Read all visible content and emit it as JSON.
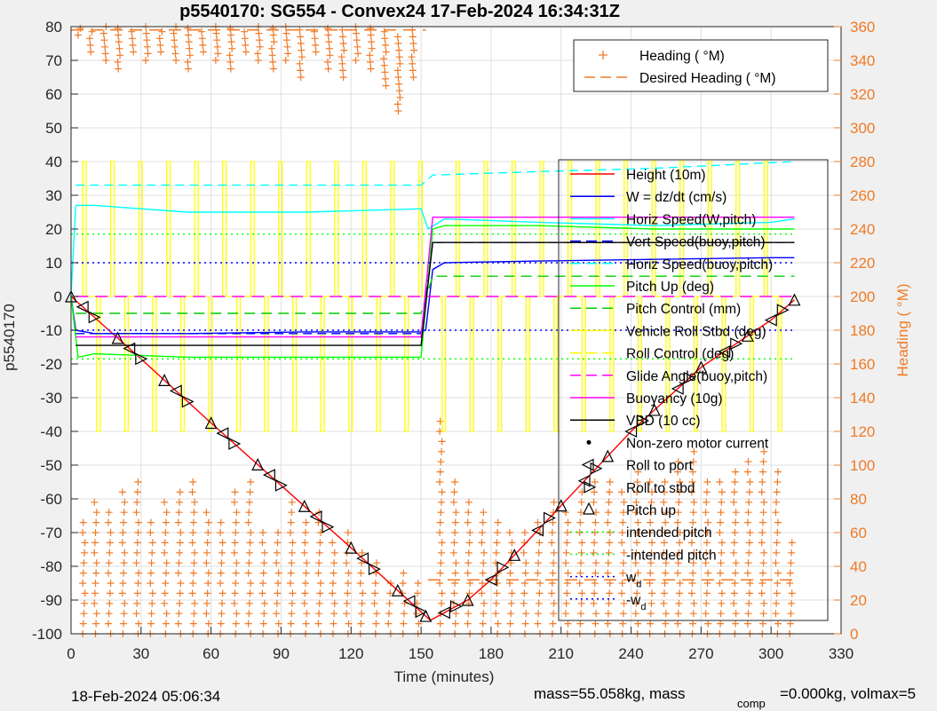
{
  "chart_data": {
    "type": "line",
    "title": "p5540170: SG554 - Convex24 17-Feb-2024 16:34:31Z",
    "xlabel": "Time (minutes)",
    "ylabel": "p5540170",
    "y2label": "Heading (  °M)",
    "xlim": [
      0,
      330
    ],
    "ylim": [
      -100,
      80
    ],
    "y2lim": [
      0,
      360
    ],
    "xticks": [
      0,
      30,
      60,
      90,
      120,
      150,
      180,
      210,
      240,
      270,
      300,
      330
    ],
    "yticks": [
      -100,
      -90,
      -80,
      -70,
      -60,
      -50,
      -40,
      -30,
      -20,
      -10,
      0,
      10,
      20,
      30,
      40,
      50,
      60,
      70,
      80
    ],
    "y2ticks": [
      0,
      20,
      40,
      60,
      80,
      100,
      120,
      140,
      160,
      180,
      200,
      220,
      240,
      260,
      280,
      300,
      320,
      340,
      360
    ],
    "grid": true,
    "footer_left": "18-Feb-2024 05:06:34",
    "footer_right": "mass=55.058kg, mass",
    "footer_sub": "comp",
    "footer_right2": "=0.000kg, volmax=5",
    "legend_heading": [
      {
        "name": "Heading (  °M)",
        "color": "#f07a26",
        "style": "plus"
      },
      {
        "name": "Desired Heading (    °M)",
        "color": "#f07a26",
        "style": "dash"
      }
    ],
    "legend_main": [
      {
        "name": "Height (10m)",
        "color": "#ff0000",
        "style": "solid"
      },
      {
        "name": "W = dz/dt (cm/s)",
        "color": "#0000ff",
        "style": "solid"
      },
      {
        "name": "Horiz Speed(W,pitch)",
        "color": "#00ffff",
        "style": "solid"
      },
      {
        "name": "Vert Speed(buoy,pitch)",
        "color": "#0000ff",
        "style": "dash"
      },
      {
        "name": "Horiz Speed(buoy,pitch)",
        "color": "#00ffff",
        "style": "dash"
      },
      {
        "name": "Pitch Up (deg)",
        "color": "#00ff00",
        "style": "solid"
      },
      {
        "name": "Pitch Control (mm)",
        "color": "#00cc00",
        "style": "dash"
      },
      {
        "name": "Vehicle Roll Stbd (deg)",
        "color": "#ffff00",
        "style": "solid"
      },
      {
        "name": "Roll Control (deg)",
        "color": "#ffff00",
        "style": "dash"
      },
      {
        "name": "Glide Angle(buoy,pitch)",
        "color": "#ff00ff",
        "style": "dash"
      },
      {
        "name": "Buoyancy (10g)",
        "color": "#ff00ff",
        "style": "solid"
      },
      {
        "name": "VBD (10 cc)",
        "color": "#000000",
        "style": "solid"
      },
      {
        "name": "Non-zero motor current",
        "color": "#000000",
        "style": "dot"
      },
      {
        "name": "Roll to port",
        "color": "#000000",
        "style": "ltri"
      },
      {
        "name": "Roll to stbd",
        "color": "#000000",
        "style": "rtri"
      },
      {
        "name": "Pitch up",
        "color": "#000000",
        "style": "utri"
      },
      {
        "name": "intended pitch",
        "color": "#00ff00",
        "style": "dot-line"
      },
      {
        "name": "-intended pitch",
        "color": "#00ff00",
        "style": "dot-line"
      },
      {
        "name": "w",
        "sub": "d",
        "color": "#0000ff",
        "style": "dot-line"
      },
      {
        "name": "-w",
        "sub": "d",
        "color": "#0000ff",
        "style": "dot-line"
      }
    ],
    "series": [
      {
        "name": "Height (10m)",
        "color": "#ff0000",
        "x": [
          0,
          30,
          60,
          90,
          120,
          150,
          154,
          170,
          180,
          210,
          240,
          270,
          300,
          310
        ],
        "y": [
          0,
          -18.5,
          -37.5,
          -56,
          -74.5,
          -93.5,
          -96,
          -90,
          -84,
          -62,
          -40,
          -21,
          -7,
          -1
        ]
      },
      {
        "name": "W = dz/dt (cm/s)",
        "color": "#0000ff",
        "x": [
          0,
          2,
          10,
          50,
          100,
          150,
          152,
          155,
          160,
          200,
          250,
          300,
          310
        ],
        "y": [
          0,
          -10,
          -11,
          -11,
          -10.5,
          -10.5,
          -10,
          8,
          10,
          10.5,
          11,
          11.5,
          11.5
        ]
      },
      {
        "name": "Horiz Speed(W,pitch)",
        "color": "#00ffff",
        "x": [
          0,
          2,
          10,
          50,
          100,
          150,
          153,
          160,
          200,
          250,
          300,
          310
        ],
        "y": [
          0,
          27,
          27,
          25,
          25,
          26,
          20,
          23,
          22,
          21,
          22,
          23
        ]
      },
      {
        "name": "Vert Speed(buoy,pitch)",
        "color": "#0000ff",
        "x": [
          2,
          150,
          155,
          310
        ],
        "y": [
          -11,
          -11,
          16,
          16
        ]
      },
      {
        "name": "Horiz Speed(buoy,pitch)",
        "color": "#00ffff",
        "x": [
          2,
          150,
          155,
          200,
          250,
          310
        ],
        "y": [
          33,
          33,
          36,
          37,
          38,
          40
        ]
      },
      {
        "name": "Pitch Up (deg)",
        "color": "#00ff00",
        "x": [
          0,
          3,
          10,
          50,
          100,
          150,
          155,
          160,
          200,
          250,
          310
        ],
        "y": [
          0,
          -18,
          -17,
          -18,
          -18,
          -18,
          20,
          21,
          21,
          20,
          20
        ]
      },
      {
        "name": "Pitch Control (mm)",
        "color": "#00cc00",
        "x": [
          2,
          150,
          155,
          310
        ],
        "y": [
          -5,
          -5,
          6,
          6
        ]
      },
      {
        "name": "Glide Angle(buoy,pitch)",
        "color": "#ff00ff",
        "x": [
          2,
          150,
          155,
          310
        ],
        "y": [
          0,
          0,
          0,
          0
        ]
      },
      {
        "name": "Buoyancy (10g)",
        "color": "#ff00ff",
        "x": [
          2,
          150,
          155,
          310
        ],
        "y": [
          -12,
          -12,
          23.5,
          23.5
        ]
      },
      {
        "name": "VBD (10 cc)",
        "color": "#000000",
        "x": [
          2,
          150,
          155,
          310
        ],
        "y": [
          -14.5,
          -14.5,
          16,
          16
        ]
      },
      {
        "name": "intended pitch",
        "color": "#00ff00",
        "x": [
          0,
          310
        ],
        "y": [
          18.5,
          18.5
        ]
      },
      {
        "name": "-intended pitch",
        "color": "#00ff00",
        "x": [
          0,
          310
        ],
        "y": [
          -18.5,
          -18.5
        ]
      },
      {
        "name": "w_d",
        "color": "#0000ff",
        "x": [
          0,
          310
        ],
        "y": [
          10,
          10
        ]
      },
      {
        "name": "-w_d",
        "color": "#0000ff",
        "x": [
          0,
          310
        ],
        "y": [
          -10,
          -10
        ]
      }
    ],
    "roll_control": {
      "name": "Roll Control (deg)",
      "color": "#ffff00",
      "baseline": 0,
      "x": [
        5,
        11,
        17,
        23,
        29,
        35,
        41,
        47,
        53,
        59,
        65,
        71,
        77,
        83,
        89,
        95,
        101,
        107,
        113,
        119,
        125,
        131,
        137,
        143,
        149,
        159,
        165,
        171,
        177,
        183,
        189,
        195,
        201,
        207,
        213,
        219,
        225,
        231,
        237,
        243,
        249,
        255,
        261,
        267,
        273,
        279,
        285,
        291,
        297,
        303
      ],
      "y": [
        40,
        -40,
        40,
        -40,
        40,
        -40,
        40,
        -40,
        40,
        -40,
        40,
        -40,
        40,
        -40,
        40,
        -40,
        40,
        -40,
        40,
        -40,
        40,
        -40,
        40,
        -40,
        40,
        -40,
        40,
        -40,
        40,
        -40,
        40,
        -40,
        40,
        -40,
        40,
        -40,
        40,
        -40,
        40,
        -40,
        40,
        -40,
        40,
        -40,
        40,
        -40,
        40,
        -40,
        40,
        -40
      ]
    },
    "heading_columns": {
      "name": "Heading (  °M)",
      "color": "#f07a26",
      "dive": {
        "x": [
          3,
          8,
          14,
          20,
          26,
          32,
          38,
          44,
          50,
          56,
          62,
          68,
          74,
          80,
          86,
          92,
          98,
          104,
          110,
          116,
          122,
          128,
          134,
          140,
          146
        ],
        "low": [
          355,
          345,
          340,
          335,
          345,
          340,
          345,
          340,
          335,
          345,
          340,
          335,
          345,
          340,
          335,
          340,
          330,
          345,
          335,
          330,
          340,
          335,
          325,
          310,
          330
        ],
        "high": [
          360,
          360,
          360,
          360,
          360,
          360,
          360,
          360,
          360,
          360,
          360,
          360,
          360,
          360,
          360,
          360,
          360,
          360,
          360,
          360,
          360,
          360,
          360,
          355,
          360
        ]
      },
      "dive_low": {
        "x": [
          5,
          10,
          16,
          22,
          28,
          34,
          40,
          46,
          52,
          58,
          64,
          70,
          76,
          82,
          88,
          94,
          100,
          106,
          112,
          118,
          124,
          130,
          136,
          142,
          148
        ],
        "low": [
          0,
          0,
          0,
          0,
          0,
          0,
          0,
          0,
          0,
          0,
          0,
          0,
          0,
          0,
          0,
          0,
          0,
          0,
          0,
          0,
          0,
          0,
          0,
          0,
          0
        ],
        "high": [
          70,
          80,
          75,
          85,
          90,
          70,
          80,
          85,
          90,
          75,
          70,
          85,
          90,
          65,
          60,
          80,
          70,
          75,
          55,
          60,
          50,
          45,
          35,
          40,
          30
        ]
      },
      "climb": {
        "x": [
          158,
          164,
          170,
          176,
          182,
          188,
          194,
          200,
          206,
          212,
          218,
          224,
          230,
          236,
          242,
          248,
          254,
          260,
          266,
          272,
          278,
          284,
          290,
          296,
          302,
          308
        ],
        "low": [
          0,
          0,
          0,
          0,
          0,
          0,
          0,
          0,
          0,
          0,
          0,
          0,
          0,
          0,
          0,
          0,
          0,
          0,
          0,
          0,
          0,
          0,
          0,
          0,
          0,
          0
        ],
        "high": [
          130,
          90,
          80,
          75,
          70,
          60,
          65,
          70,
          80,
          75,
          85,
          95,
          90,
          85,
          100,
          95,
          90,
          105,
          110,
          95,
          90,
          100,
          105,
          110,
          100,
          55
        ]
      }
    },
    "desired_heading": {
      "name": "Desired Heading (    °M)",
      "color": "#f07a26",
      "segments": [
        {
          "x": [
            0,
            152
          ],
          "y": [
            358,
            358
          ]
        },
        {
          "x": [
            153,
            310
          ],
          "y": [
            32,
            32
          ]
        }
      ]
    },
    "markers": {
      "pitch_up_x": [
        0,
        20,
        40,
        60,
        80,
        100,
        120,
        140,
        152,
        170,
        190,
        210,
        230,
        250,
        270,
        290,
        310
      ],
      "roll_port_x": [
        5,
        25,
        45,
        65,
        85,
        105,
        125,
        145,
        160,
        180,
        200,
        220,
        240,
        260,
        280,
        300
      ],
      "roll_stbd_x": [
        10,
        30,
        50,
        70,
        90,
        110,
        130,
        150,
        165,
        185,
        205,
        225,
        245,
        265,
        285,
        305
      ]
    }
  }
}
